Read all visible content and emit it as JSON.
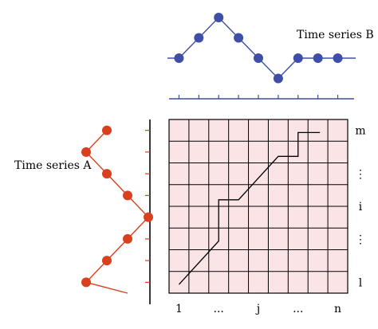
{
  "series_b": {
    "label": "Time series B",
    "color": "#3f4fa8",
    "values": [
      0,
      1,
      2,
      1,
      0,
      -1,
      0,
      0,
      0
    ]
  },
  "series_a": {
    "label": "Time series A",
    "color": "#d9401e",
    "values": [
      1,
      2,
      1,
      0,
      -1,
      0,
      1,
      2
    ]
  },
  "matrix": {
    "cols": 9,
    "rows": 8,
    "fill": "#fbe4e6",
    "grid_color": "#000000",
    "col_labels": [
      "1",
      "...",
      "j",
      "...",
      "n"
    ],
    "row_labels": [
      "m",
      "⋮",
      "i",
      "⋮",
      "l"
    ],
    "warping_path": [
      [
        0.5,
        0.4
      ],
      [
        2.5,
        2.4
      ],
      [
        2.5,
        4.3
      ],
      [
        3.5,
        4.3
      ],
      [
        5.5,
        6.3
      ],
      [
        6.5,
        6.3
      ],
      [
        6.5,
        7.4
      ],
      [
        7.6,
        7.4
      ]
    ]
  }
}
